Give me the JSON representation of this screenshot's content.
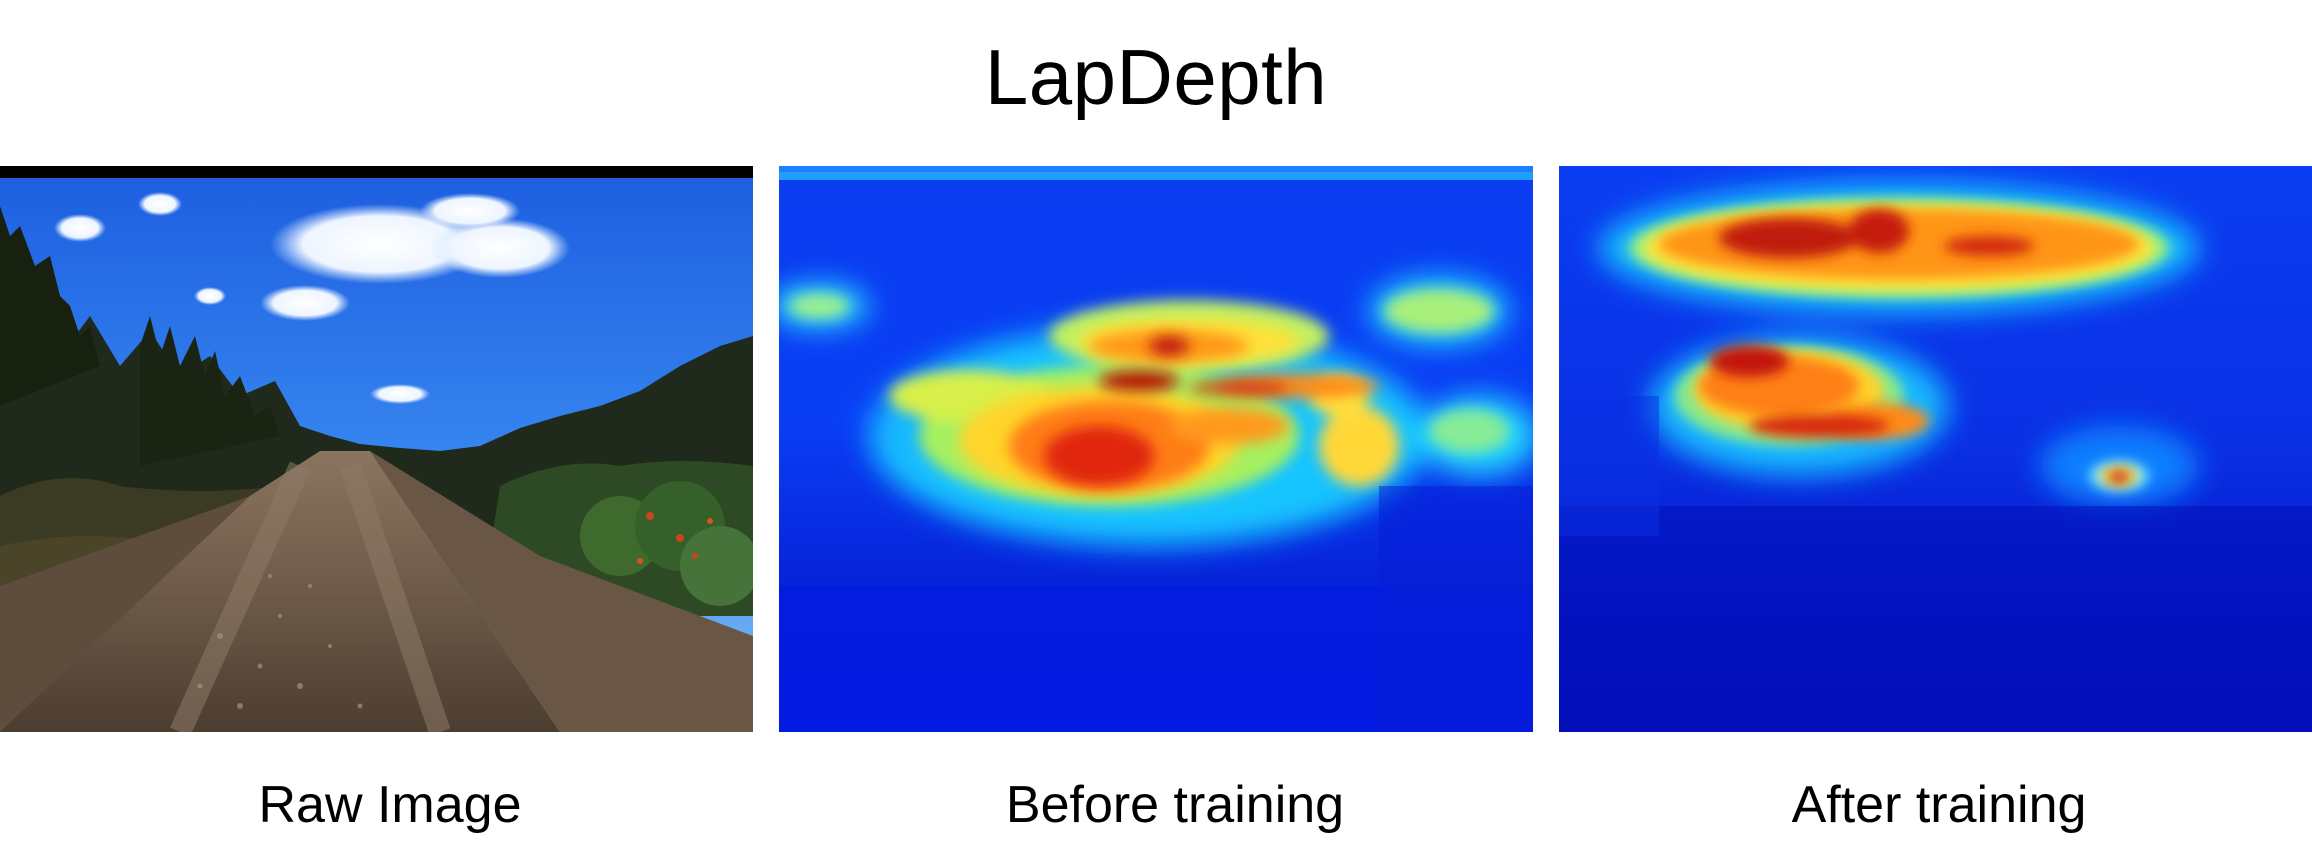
{
  "figure": {
    "title": "LapDepth"
  },
  "panels": [
    {
      "id": "raw",
      "caption": "Raw Image"
    },
    {
      "id": "before",
      "caption": "Before training"
    },
    {
      "id": "after",
      "caption": "After training"
    }
  ]
}
